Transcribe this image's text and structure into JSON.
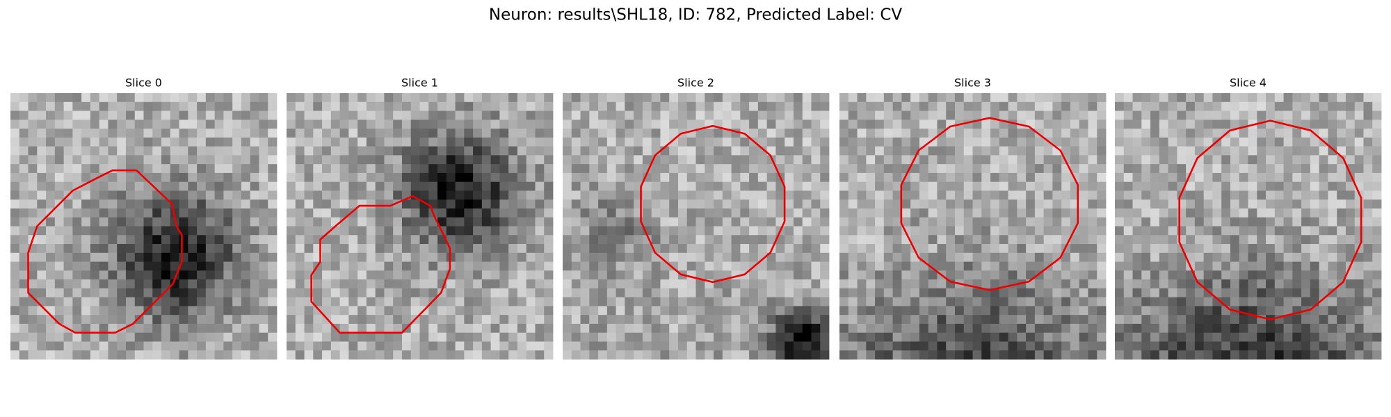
{
  "title": "Neuron: results\\SHL18, ID: 782, Predicted Label: CV",
  "panels": [
    {
      "title": "Slice 0"
    },
    {
      "title": "Slice 1"
    },
    {
      "title": "Slice 2"
    },
    {
      "title": "Slice 3"
    },
    {
      "title": "Slice 4"
    }
  ]
}
